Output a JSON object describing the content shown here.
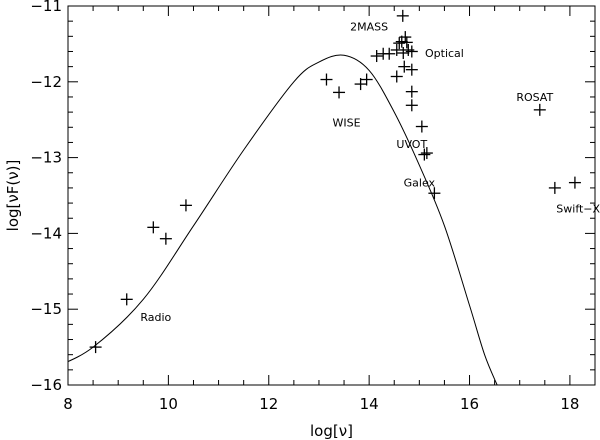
{
  "chart_data": {
    "type": "scatter",
    "xlabel": "log[ν]",
    "ylabel": "log[νF(ν)]",
    "xlim": [
      8,
      18.5
    ],
    "ylim": [
      -16,
      -11
    ],
    "xticks": [
      8,
      10,
      12,
      14,
      16,
      18
    ],
    "yticks": [
      -11,
      -12,
      -13,
      -14,
      -15,
      -16
    ],
    "xtick_labels": [
      "8",
      "10",
      "12",
      "14",
      "16",
      "18"
    ],
    "ytick_labels": [
      "−11",
      "−12",
      "−13",
      "−14",
      "−15",
      "−16"
    ],
    "grid": false,
    "points": [
      {
        "x": 8.55,
        "y": -15.5
      },
      {
        "x": 9.17,
        "y": -14.87
      },
      {
        "x": 9.7,
        "y": -13.92
      },
      {
        "x": 9.95,
        "y": -14.07
      },
      {
        "x": 10.35,
        "y": -13.63
      },
      {
        "x": 13.15,
        "y": -11.97
      },
      {
        "x": 13.4,
        "y": -12.14
      },
      {
        "x": 13.83,
        "y": -12.03
      },
      {
        "x": 13.95,
        "y": -11.97
      },
      {
        "x": 14.15,
        "y": -11.66
      },
      {
        "x": 14.28,
        "y": -11.63
      },
      {
        "x": 14.4,
        "y": -11.63
      },
      {
        "x": 14.55,
        "y": -11.58
      },
      {
        "x": 14.55,
        "y": -11.93
      },
      {
        "x": 14.6,
        "y": -11.49
      },
      {
        "x": 14.65,
        "y": -11.47
      },
      {
        "x": 14.67,
        "y": -11.13
      },
      {
        "x": 14.68,
        "y": -11.62
      },
      {
        "x": 14.7,
        "y": -11.8
      },
      {
        "x": 14.72,
        "y": -11.41
      },
      {
        "x": 14.75,
        "y": -11.48
      },
      {
        "x": 14.78,
        "y": -11.58
      },
      {
        "x": 14.85,
        "y": -11.6
      },
      {
        "x": 14.85,
        "y": -11.84
      },
      {
        "x": 14.85,
        "y": -12.13
      },
      {
        "x": 14.85,
        "y": -12.31
      },
      {
        "x": 15.05,
        "y": -12.59
      },
      {
        "x": 15.1,
        "y": -12.96
      },
      {
        "x": 15.15,
        "y": -12.94
      },
      {
        "x": 15.3,
        "y": -13.47
      },
      {
        "x": 17.4,
        "y": -12.37
      },
      {
        "x": 17.7,
        "y": -13.4
      },
      {
        "x": 18.1,
        "y": -13.33
      }
    ],
    "model_curve": {
      "x": [
        7.8,
        8.5,
        9.5,
        10.5,
        11.5,
        12.5,
        13.0,
        13.5,
        14.0,
        14.5,
        15.0,
        15.5,
        16.0,
        16.3,
        16.55
      ],
      "y": [
        -15.75,
        -15.5,
        -14.87,
        -13.9,
        -12.9,
        -12.0,
        -11.74,
        -11.65,
        -11.85,
        -12.4,
        -13.1,
        -13.9,
        -14.95,
        -15.6,
        -16.0
      ]
    },
    "annotations": [
      {
        "text": "2MASS",
        "x": 14.0,
        "y": -11.27
      },
      {
        "text": "Optical",
        "x": 15.5,
        "y": -11.62
      },
      {
        "text": "WISE",
        "x": 13.55,
        "y": -12.54
      },
      {
        "text": "UVOT",
        "x": 14.85,
        "y": -12.82
      },
      {
        "text": "Galex",
        "x": 15.0,
        "y": -13.33
      },
      {
        "text": "ROSAT",
        "x": 17.3,
        "y": -12.2
      },
      {
        "text": "Swift−XRT",
        "x": 18.3,
        "y": -13.67
      },
      {
        "text": "Radio",
        "x": 9.75,
        "y": -15.1
      }
    ]
  }
}
